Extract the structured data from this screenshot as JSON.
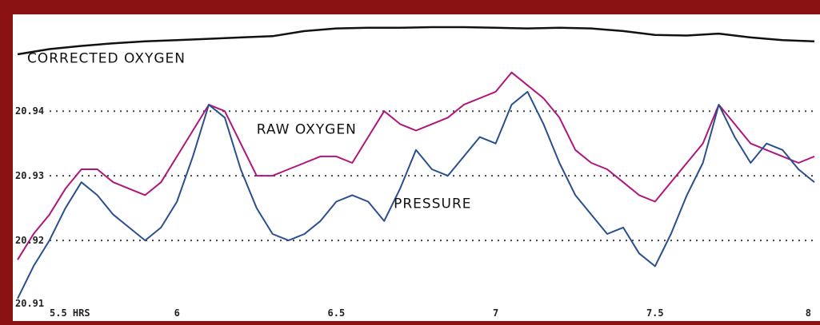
{
  "chart_data": {
    "type": "line",
    "title": "",
    "xlabel": "",
    "ylabel": "",
    "xlim": [
      5.5,
      8.0
    ],
    "ylim": [
      20.91,
      20.953
    ],
    "x_ticks": [
      {
        "value": 5.5,
        "label": "5.5 HRS"
      },
      {
        "value": 6.0,
        "label": "6"
      },
      {
        "value": 6.5,
        "label": "6.5"
      },
      {
        "value": 7.0,
        "label": "7"
      },
      {
        "value": 7.5,
        "label": "7.5"
      },
      {
        "value": 8.0,
        "label": "8"
      }
    ],
    "y_ticks": [
      {
        "value": 20.91,
        "label": "20.91"
      },
      {
        "value": 20.92,
        "label": "20.92"
      },
      {
        "value": 20.93,
        "label": "20.93"
      },
      {
        "value": 20.94,
        "label": "20.94"
      }
    ],
    "grid": {
      "horizontal_dotted": true
    },
    "colors": {
      "frame": "#8a1212",
      "background": "#ffffff",
      "corrected": "#111111",
      "raw": "#b0167a",
      "pressure": "#2a4f8f",
      "grid": "#444444"
    },
    "series": [
      {
        "key": "corrected",
        "label": "CORRECTED OXYGEN",
        "label_at": [
          5.53,
          20.9475
        ],
        "x": [
          5.5,
          5.6,
          5.7,
          5.8,
          5.9,
          6.0,
          6.1,
          6.2,
          6.3,
          6.4,
          6.5,
          6.6,
          6.7,
          6.8,
          6.9,
          7.0,
          7.1,
          7.2,
          7.3,
          7.4,
          7.5,
          7.6,
          7.7,
          7.8,
          7.9,
          8.0
        ],
        "y": [
          20.9488,
          20.9496,
          20.9501,
          20.9505,
          20.9508,
          20.951,
          20.9512,
          20.9514,
          20.9516,
          20.9524,
          20.9528,
          20.9529,
          20.9529,
          20.953,
          20.953,
          20.9529,
          20.9528,
          20.9529,
          20.9528,
          20.9524,
          20.9518,
          20.9517,
          20.952,
          20.9514,
          20.951,
          20.9508
        ]
      },
      {
        "key": "raw",
        "label": "RAW OXYGEN",
        "label_at": [
          6.25,
          20.9365
        ],
        "x": [
          5.5,
          5.55,
          5.6,
          5.65,
          5.7,
          5.75,
          5.8,
          5.85,
          5.9,
          5.95,
          6.0,
          6.05,
          6.1,
          6.15,
          6.2,
          6.25,
          6.3,
          6.35,
          6.4,
          6.45,
          6.5,
          6.55,
          6.6,
          6.65,
          6.7,
          6.75,
          6.8,
          6.85,
          6.9,
          6.95,
          7.0,
          7.05,
          7.1,
          7.15,
          7.2,
          7.25,
          7.3,
          7.35,
          7.4,
          7.45,
          7.5,
          7.55,
          7.6,
          7.65,
          7.7,
          7.75,
          7.8,
          7.85,
          7.9,
          7.95,
          8.0
        ],
        "y": [
          20.917,
          20.921,
          20.924,
          20.928,
          20.931,
          20.931,
          20.929,
          20.928,
          20.927,
          20.929,
          20.933,
          20.937,
          20.941,
          20.94,
          20.935,
          20.93,
          20.93,
          20.931,
          20.932,
          20.933,
          20.933,
          20.932,
          20.936,
          20.94,
          20.938,
          20.937,
          20.938,
          20.939,
          20.941,
          20.942,
          20.943,
          20.946,
          20.944,
          20.942,
          20.939,
          20.934,
          20.932,
          20.931,
          20.929,
          20.927,
          20.926,
          20.929,
          20.932,
          20.935,
          20.941,
          20.938,
          20.935,
          20.934,
          20.933,
          20.932,
          20.933
        ]
      },
      {
        "key": "pressure",
        "label": "PRESSURE",
        "label_at": [
          6.68,
          20.925
        ],
        "x": [
          5.5,
          5.55,
          5.6,
          5.65,
          5.7,
          5.75,
          5.8,
          5.85,
          5.9,
          5.95,
          6.0,
          6.05,
          6.1,
          6.15,
          6.2,
          6.25,
          6.3,
          6.35,
          6.4,
          6.45,
          6.5,
          6.55,
          6.6,
          6.65,
          6.7,
          6.75,
          6.8,
          6.85,
          6.9,
          6.95,
          7.0,
          7.05,
          7.1,
          7.15,
          7.2,
          7.25,
          7.3,
          7.35,
          7.4,
          7.45,
          7.5,
          7.55,
          7.6,
          7.65,
          7.7,
          7.75,
          7.8,
          7.85,
          7.9,
          7.95,
          8.0
        ],
        "y": [
          20.911,
          20.916,
          20.92,
          20.925,
          20.929,
          20.927,
          20.924,
          20.922,
          20.92,
          20.922,
          20.926,
          20.933,
          20.941,
          20.939,
          20.931,
          20.925,
          20.921,
          20.92,
          20.921,
          20.923,
          20.926,
          20.927,
          20.926,
          20.923,
          20.928,
          20.934,
          20.931,
          20.93,
          20.933,
          20.936,
          20.935,
          20.941,
          20.943,
          20.938,
          20.932,
          20.927,
          20.924,
          20.921,
          20.922,
          20.918,
          20.916,
          20.921,
          20.927,
          20.932,
          20.941,
          20.936,
          20.932,
          20.935,
          20.934,
          20.931,
          20.929
        ]
      }
    ]
  }
}
